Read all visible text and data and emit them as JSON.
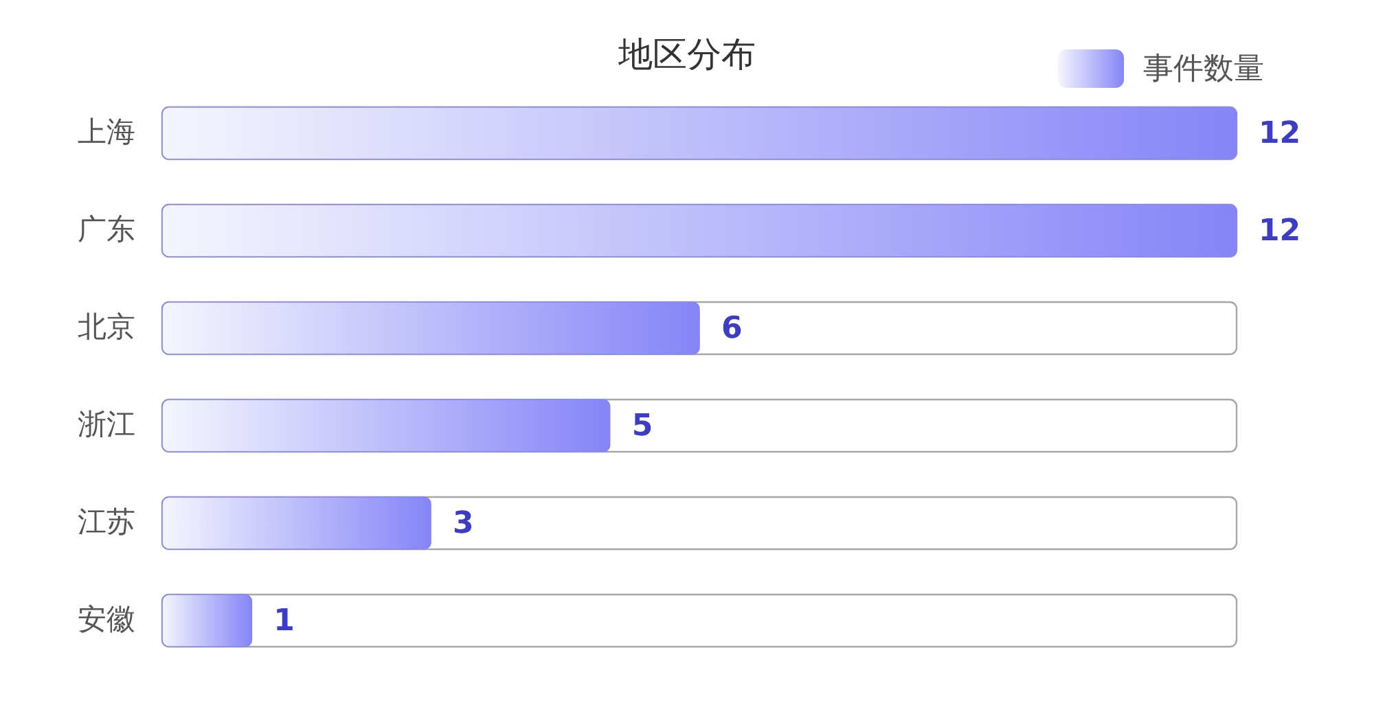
{
  "chart_data": {
    "type": "bar",
    "orientation": "horizontal",
    "title": "地区分布",
    "categories": [
      "上海",
      "广东",
      "北京",
      "浙江",
      "江苏",
      "安徽"
    ],
    "series": [
      {
        "name": "事件数量",
        "color": "#8585f8",
        "values": [
          12,
          12,
          6,
          5,
          3,
          1
        ]
      }
    ],
    "xlim": [
      0,
      12
    ],
    "data_labels": true,
    "legend": "top right",
    "tick_labels": "y"
  }
}
